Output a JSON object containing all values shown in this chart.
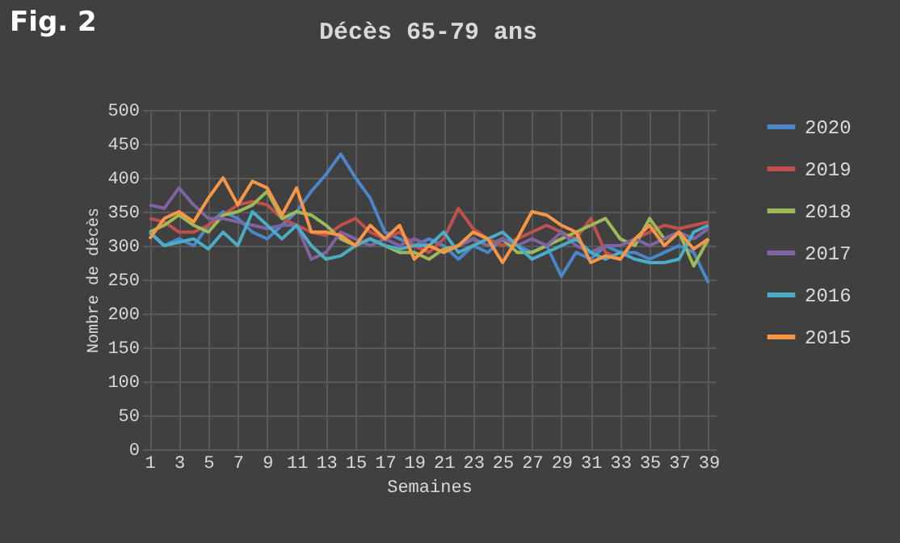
{
  "chart_data": {
    "type": "line",
    "title": "Décès 65-79 ans",
    "xlabel": "Semaines",
    "ylabel": "Nombre de décès",
    "annotations": [
      "Fig. 2"
    ],
    "x": [
      1,
      2,
      3,
      4,
      5,
      6,
      7,
      8,
      9,
      10,
      11,
      12,
      13,
      14,
      15,
      16,
      17,
      18,
      19,
      20,
      21,
      22,
      23,
      24,
      25,
      26,
      27,
      28,
      29,
      30,
      31,
      32,
      33,
      34,
      35,
      36,
      37,
      38,
      39
    ],
    "xlim": [
      0.5,
      39.5
    ],
    "xticks": [
      1,
      3,
      5,
      7,
      9,
      11,
      13,
      15,
      17,
      19,
      21,
      23,
      25,
      27,
      29,
      31,
      33,
      35,
      37,
      39
    ],
    "ylim": [
      0,
      500
    ],
    "yticks": [
      0,
      50,
      100,
      150,
      200,
      250,
      300,
      350,
      400,
      450,
      500
    ],
    "grid": true,
    "legend": "right",
    "line_style": "solid",
    "marker": "none",
    "series": [
      {
        "name": "2020",
        "color": "#4a86c8",
        "values": [
          320,
          300,
          310,
          300,
          330,
          350,
          340,
          320,
          310,
          330,
          350,
          380,
          405,
          435,
          400,
          370,
          320,
          310,
          300,
          310,
          300,
          280,
          300,
          290,
          310,
          300,
          290,
          300,
          255,
          290,
          280,
          300,
          290,
          290,
          280,
          290,
          300,
          290,
          245
        ]
      },
      {
        "name": "2019",
        "color": "#c0504d",
        "values": [
          340,
          335,
          320,
          320,
          330,
          345,
          360,
          365,
          360,
          340,
          330,
          320,
          315,
          330,
          340,
          320,
          310,
          320,
          300,
          290,
          310,
          355,
          325,
          310,
          300,
          310,
          320,
          330,
          320,
          310,
          340,
          290,
          280,
          310,
          320,
          330,
          325,
          330,
          335
        ]
      },
      {
        "name": "2018",
        "color": "#9bbb59",
        "values": [
          320,
          330,
          345,
          330,
          320,
          345,
          350,
          360,
          380,
          340,
          350,
          345,
          330,
          310,
          300,
          310,
          300,
          290,
          290,
          280,
          295,
          300,
          310,
          300,
          310,
          290,
          290,
          300,
          310,
          320,
          330,
          340,
          310,
          300,
          340,
          310,
          320,
          270,
          310
        ]
      },
      {
        "name": "2017",
        "color": "#8064a2",
        "values": [
          360,
          355,
          385,
          360,
          340,
          340,
          335,
          330,
          325,
          330,
          330,
          280,
          290,
          320,
          310,
          300,
          310,
          300,
          310,
          300,
          290,
          300,
          310,
          300,
          310,
          300,
          310,
          300,
          320,
          300,
          290,
          300,
          300,
          310,
          300,
          310,
          320,
          310,
          325
        ]
      },
      {
        "name": "2016",
        "color": "#4bacc6",
        "values": [
          320,
          300,
          305,
          310,
          295,
          320,
          300,
          350,
          330,
          310,
          330,
          300,
          280,
          285,
          300,
          310,
          300,
          295,
          300,
          300,
          320,
          290,
          300,
          310,
          320,
          300,
          280,
          290,
          300,
          310,
          290,
          280,
          290,
          280,
          275,
          275,
          280,
          320,
          330
        ]
      },
      {
        "name": "2015",
        "color": "#f79646",
        "values": [
          310,
          340,
          350,
          335,
          370,
          400,
          360,
          395,
          385,
          345,
          385,
          320,
          320,
          315,
          300,
          330,
          310,
          330,
          280,
          300,
          290,
          300,
          320,
          310,
          275,
          310,
          350,
          345,
          330,
          320,
          275,
          285,
          280,
          310,
          330,
          300,
          320,
          295,
          310
        ]
      }
    ]
  }
}
